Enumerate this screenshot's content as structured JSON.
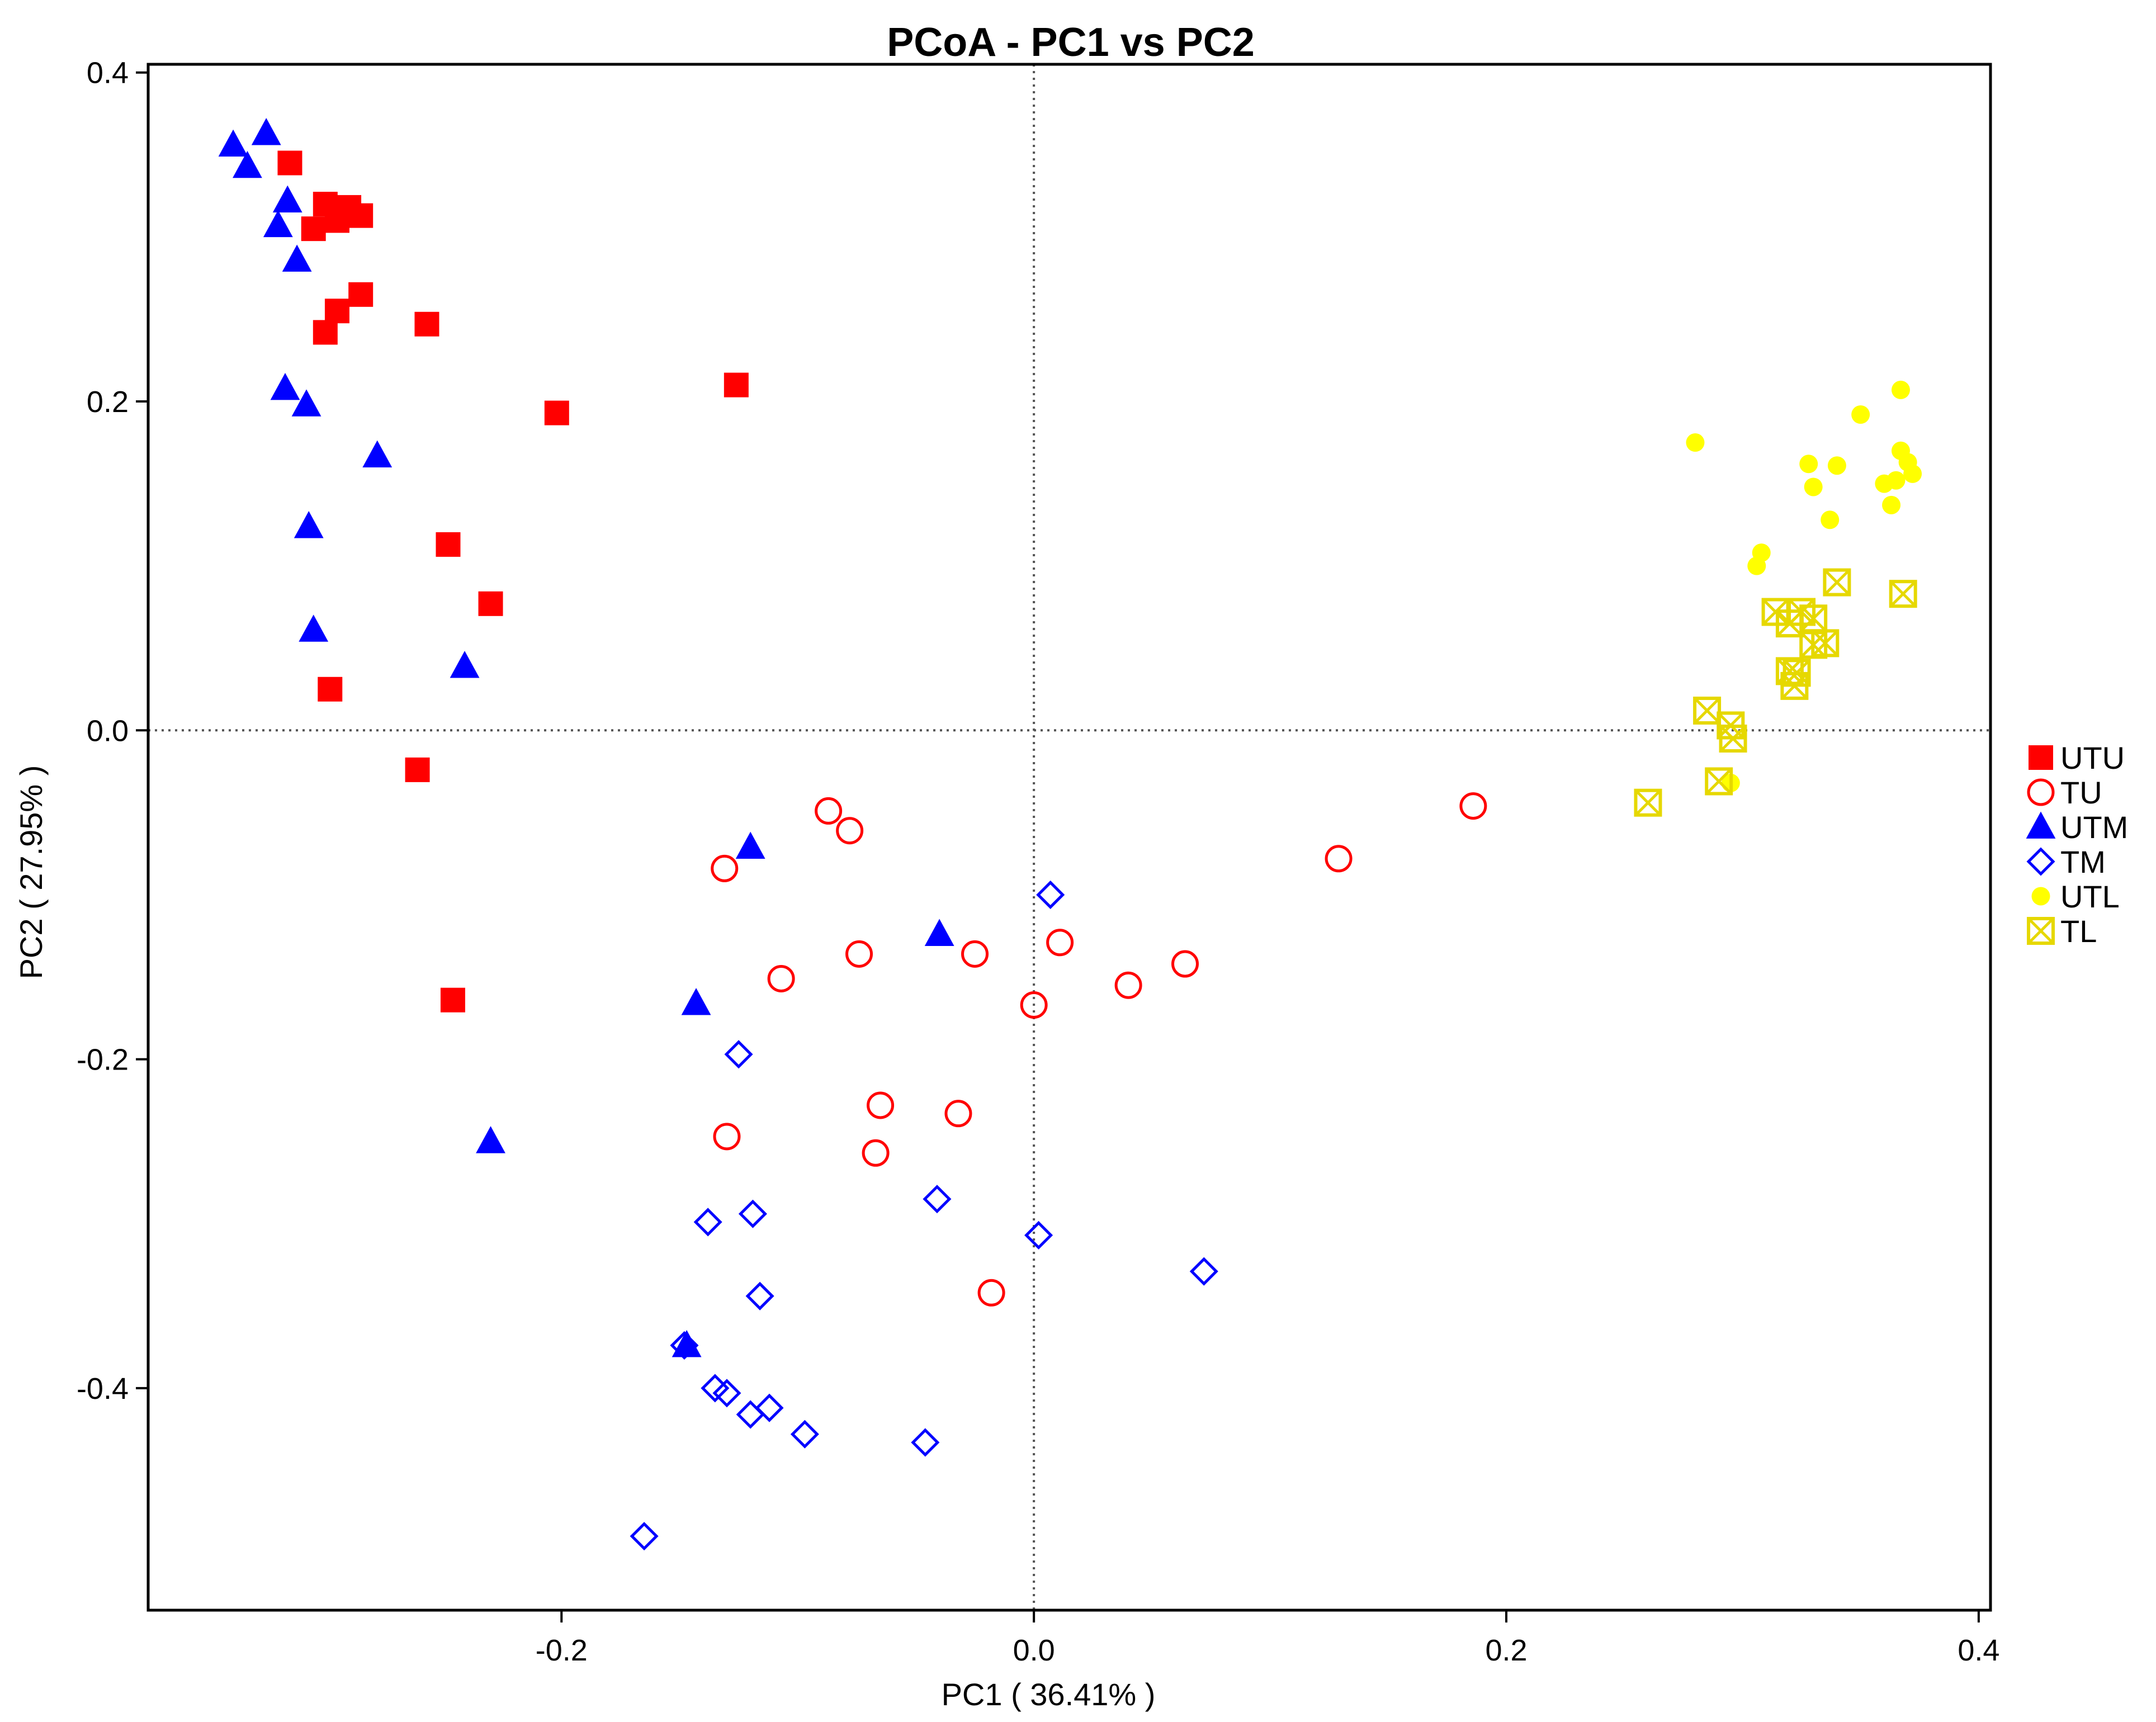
{
  "chart_data": {
    "type": "scatter",
    "title": "PCoA - PC1 vs PC2",
    "xlabel": "PC1 ( 36.41% )",
    "ylabel": "PC2 ( 27.95% )",
    "xlim": [
      -0.375,
      0.405
    ],
    "ylim": [
      -0.535,
      0.405
    ],
    "xticks": [
      -0.2,
      0.0,
      0.2,
      0.4
    ],
    "xtick_labels": [
      "-0.2",
      "0.0",
      "0.2",
      "0.4"
    ],
    "yticks": [
      -0.4,
      -0.2,
      0.0,
      0.2,
      0.4
    ],
    "ytick_labels": [
      "-0.4",
      "-0.2",
      "0.0",
      "0.2",
      "0.4"
    ],
    "reference_lines": {
      "x": 0.0,
      "y": 0.0,
      "style": "dotted"
    },
    "legend_position": "right",
    "series": [
      {
        "name": "UTU",
        "marker": "square-filled",
        "color": "#ff0000",
        "points": [
          [
            -0.315,
            0.345
          ],
          [
            -0.3,
            0.32
          ],
          [
            -0.295,
            0.31
          ],
          [
            -0.29,
            0.318
          ],
          [
            -0.285,
            0.313
          ],
          [
            -0.305,
            0.305
          ],
          [
            -0.295,
            0.255
          ],
          [
            -0.285,
            0.265
          ],
          [
            -0.3,
            0.242
          ],
          [
            -0.257,
            0.247
          ],
          [
            -0.202,
            0.193
          ],
          [
            -0.126,
            0.21
          ],
          [
            -0.248,
            0.113
          ],
          [
            -0.23,
            0.077
          ],
          [
            -0.298,
            0.025
          ],
          [
            -0.261,
            -0.024
          ],
          [
            -0.246,
            -0.164
          ]
        ]
      },
      {
        "name": "TU",
        "marker": "circle-open",
        "color": "#ff0000",
        "points": [
          [
            -0.087,
            -0.049
          ],
          [
            -0.078,
            -0.061
          ],
          [
            -0.131,
            -0.084
          ],
          [
            -0.074,
            -0.136
          ],
          [
            -0.025,
            -0.136
          ],
          [
            0.011,
            -0.129
          ],
          [
            -0.107,
            -0.151
          ],
          [
            0.04,
            -0.155
          ],
          [
            0.064,
            -0.142
          ],
          [
            0.0,
            -0.167
          ],
          [
            0.129,
            -0.078
          ],
          [
            0.186,
            -0.046
          ],
          [
            -0.065,
            -0.228
          ],
          [
            -0.032,
            -0.233
          ],
          [
            -0.13,
            -0.247
          ],
          [
            -0.067,
            -0.257
          ],
          [
            -0.018,
            -0.342
          ]
        ]
      },
      {
        "name": "UTM",
        "marker": "triangle-filled",
        "color": "#0000ff",
        "points": [
          [
            -0.339,
            0.356
          ],
          [
            -0.325,
            0.363
          ],
          [
            -0.333,
            0.343
          ],
          [
            -0.316,
            0.322
          ],
          [
            -0.32,
            0.307
          ],
          [
            -0.312,
            0.286
          ],
          [
            -0.317,
            0.208
          ],
          [
            -0.308,
            0.198
          ],
          [
            -0.278,
            0.167
          ],
          [
            -0.307,
            0.124
          ],
          [
            -0.305,
            0.061
          ],
          [
            -0.241,
            0.039
          ],
          [
            -0.12,
            -0.071
          ],
          [
            -0.04,
            -0.124
          ],
          [
            -0.143,
            -0.166
          ],
          [
            -0.23,
            -0.25
          ],
          [
            -0.147,
            -0.374
          ]
        ]
      },
      {
        "name": "TM",
        "marker": "diamond-open",
        "color": "#0000ff",
        "points": [
          [
            0.007,
            -0.1
          ],
          [
            -0.125,
            -0.197
          ],
          [
            -0.138,
            -0.299
          ],
          [
            -0.119,
            -0.294
          ],
          [
            -0.041,
            -0.285
          ],
          [
            0.002,
            -0.307
          ],
          [
            0.072,
            -0.329
          ],
          [
            -0.116,
            -0.344
          ],
          [
            -0.148,
            -0.374
          ],
          [
            -0.135,
            -0.4
          ],
          [
            -0.13,
            -0.403
          ],
          [
            -0.112,
            -0.412
          ],
          [
            -0.12,
            -0.416
          ],
          [
            -0.097,
            -0.428
          ],
          [
            -0.046,
            -0.433
          ],
          [
            -0.165,
            -0.49
          ]
        ]
      },
      {
        "name": "UTL",
        "marker": "circle-filled",
        "color": "#ffff00",
        "points": [
          [
            0.28,
            0.175
          ],
          [
            0.35,
            0.192
          ],
          [
            0.367,
            0.207
          ],
          [
            0.328,
            0.162
          ],
          [
            0.34,
            0.161
          ],
          [
            0.33,
            0.148
          ],
          [
            0.337,
            0.128
          ],
          [
            0.367,
            0.17
          ],
          [
            0.37,
            0.163
          ],
          [
            0.365,
            0.152
          ],
          [
            0.36,
            0.15
          ],
          [
            0.372,
            0.156
          ],
          [
            0.363,
            0.137
          ],
          [
            0.308,
            0.108
          ],
          [
            0.306,
            0.1
          ],
          [
            0.295,
            -0.032
          ]
        ]
      },
      {
        "name": "TL",
        "marker": "square-x-open",
        "color": "#ffff00",
        "points": [
          [
            0.34,
            0.09
          ],
          [
            0.368,
            0.083
          ],
          [
            0.314,
            0.072
          ],
          [
            0.325,
            0.072
          ],
          [
            0.33,
            0.068
          ],
          [
            0.32,
            0.065
          ],
          [
            0.335,
            0.053
          ],
          [
            0.33,
            0.052
          ],
          [
            0.32,
            0.036
          ],
          [
            0.323,
            0.035
          ],
          [
            0.322,
            0.027
          ],
          [
            0.285,
            0.012
          ],
          [
            0.295,
            0.003
          ],
          [
            0.296,
            -0.005
          ],
          [
            0.26,
            -0.044
          ],
          [
            0.29,
            -0.031
          ]
        ]
      }
    ]
  }
}
